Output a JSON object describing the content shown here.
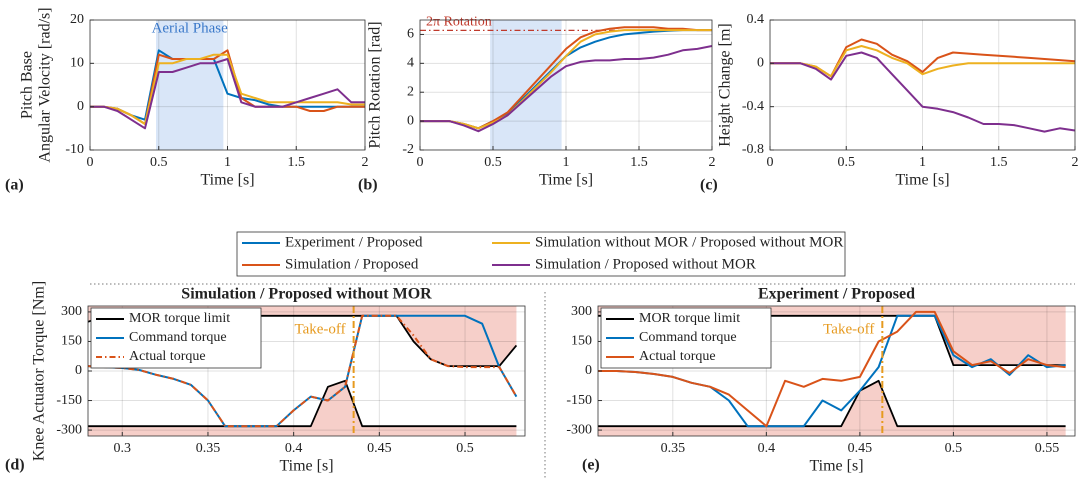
{
  "chart_data": [
    {
      "type": "line",
      "panel_label": "(a)",
      "xlabel": "Time [s]",
      "ylabel": [
        "Pitch Base",
        "Angular Velocity [rad/s]"
      ],
      "annotation": "Aerial Phase",
      "shade": [
        0.48,
        0.97
      ],
      "grid": true,
      "x": [
        0,
        0.1,
        0.2,
        0.3,
        0.4,
        0.5,
        0.6,
        0.7,
        0.8,
        0.9,
        1,
        1.1,
        1.2,
        1.3,
        1.4,
        1.5,
        1.6,
        1.7,
        1.8,
        1.9,
        2
      ],
      "xlim": [
        0,
        2
      ],
      "xticks": [
        0,
        0.5,
        1,
        1.5,
        2
      ],
      "ylim": [
        -10,
        20
      ],
      "yticks": [
        -10,
        0,
        10,
        20
      ],
      "series": [
        {
          "name": "Experiment / Proposed",
          "color": "#0072BD",
          "values": [
            0,
            0,
            -0.5,
            -2,
            -3,
            13,
            11,
            11,
            11,
            11,
            3,
            2,
            1.5,
            0.5,
            0,
            0,
            0,
            0,
            0,
            0,
            0
          ]
        },
        {
          "name": "Simulation / Proposed",
          "color": "#D95319",
          "values": [
            0,
            0,
            -0.5,
            -2,
            -4,
            12,
            11,
            11,
            11,
            11,
            13,
            2,
            0,
            0,
            0,
            0,
            -1,
            -1,
            0,
            0,
            0
          ]
        },
        {
          "name": "Simulation without MOR / Proposed without MOR",
          "color": "#EDB120",
          "values": [
            0,
            0,
            -0.5,
            -2,
            -4,
            10,
            10,
            11,
            11,
            12,
            12,
            3,
            2,
            1,
            1,
            1,
            1,
            1,
            1,
            0.5,
            0.5
          ]
        },
        {
          "name": "Simulation / Proposed without MOR",
          "color": "#7E2F8E",
          "values": [
            0,
            0,
            -1,
            -3,
            -5,
            8,
            8,
            9,
            10,
            10,
            11,
            1,
            0,
            0,
            0,
            1,
            2,
            3,
            4,
            1,
            1
          ]
        }
      ]
    },
    {
      "type": "line",
      "panel_label": "(b)",
      "xlabel": "Time [s]",
      "ylabel": [
        "Pitch Rotation [rad]"
      ],
      "annotation": "2π Rotation",
      "reference": 6.28,
      "shade": [
        0.48,
        0.97
      ],
      "grid": true,
      "x": [
        0,
        0.1,
        0.2,
        0.3,
        0.4,
        0.5,
        0.6,
        0.7,
        0.8,
        0.9,
        1,
        1.1,
        1.2,
        1.3,
        1.4,
        1.5,
        1.6,
        1.7,
        1.8,
        1.9,
        2
      ],
      "xlim": [
        0,
        2
      ],
      "xticks": [
        0,
        0.5,
        1,
        1.5,
        2
      ],
      "ylim": [
        -2,
        7
      ],
      "yticks": [
        -2,
        0,
        2,
        4,
        6
      ],
      "series": [
        {
          "color": "#0072BD",
          "values": [
            0,
            0,
            0,
            -0.2,
            -0.5,
            0,
            0.5,
            1.5,
            2.5,
            3.5,
            4.5,
            5.1,
            5.5,
            5.8,
            6,
            6.1,
            6.2,
            6.25,
            6.3,
            6.3,
            6.3
          ]
        },
        {
          "color": "#D95319",
          "values": [
            0,
            0,
            0,
            -0.2,
            -0.5,
            0,
            0.6,
            1.7,
            2.8,
            3.9,
            5,
            5.8,
            6.2,
            6.4,
            6.5,
            6.5,
            6.5,
            6.4,
            6.4,
            6.3,
            6.3
          ]
        },
        {
          "color": "#EDB120",
          "values": [
            0,
            0,
            0,
            -0.2,
            -0.5,
            -0.1,
            0.4,
            1.4,
            2.4,
            3.4,
            4.5,
            5.5,
            6,
            6.2,
            6.3,
            6.3,
            6.3,
            6.3,
            6.3,
            6.3,
            6.3
          ]
        },
        {
          "color": "#7E2F8E",
          "values": [
            0,
            0,
            0,
            -0.3,
            -0.7,
            -0.2,
            0.4,
            1.3,
            2.2,
            3.1,
            3.8,
            4.1,
            4.2,
            4.2,
            4.3,
            4.3,
            4.4,
            4.6,
            4.9,
            5.0,
            5.2
          ]
        }
      ]
    },
    {
      "type": "line",
      "panel_label": "(c)",
      "xlabel": "Time [s]",
      "ylabel": [
        "Height Change [m]"
      ],
      "grid": true,
      "x": [
        0,
        0.1,
        0.2,
        0.3,
        0.4,
        0.5,
        0.6,
        0.7,
        0.8,
        0.9,
        1,
        1.1,
        1.2,
        1.3,
        1.4,
        1.5,
        1.6,
        1.7,
        1.8,
        1.9,
        2
      ],
      "xlim": [
        0,
        2
      ],
      "xticks": [
        0,
        0.5,
        1,
        1.5,
        2
      ],
      "ylim": [
        -0.8,
        0.4
      ],
      "yticks": [
        -0.8,
        -0.4,
        0,
        0.4
      ],
      "series": [
        {
          "color": "#D95319",
          "values": [
            0,
            0,
            0,
            -0.03,
            -0.12,
            0.15,
            0.22,
            0.18,
            0.08,
            0.02,
            -0.08,
            0.05,
            0.1,
            0.09,
            0.08,
            0.07,
            0.06,
            0.05,
            0.04,
            0.03,
            0.02
          ]
        },
        {
          "color": "#EDB120",
          "values": [
            0,
            0,
            0,
            -0.03,
            -0.12,
            0.12,
            0.16,
            0.12,
            0.05,
            0,
            -0.1,
            -0.05,
            -0.02,
            0,
            0,
            0,
            0,
            0,
            0,
            0,
            0
          ]
        },
        {
          "color": "#7E2F8E",
          "values": [
            0,
            0,
            0,
            -0.05,
            -0.15,
            0.07,
            0.1,
            0.05,
            -0.1,
            -0.25,
            -0.4,
            -0.42,
            -0.45,
            -0.5,
            -0.56,
            -0.56,
            -0.57,
            -0.6,
            -0.63,
            -0.6,
            -0.62
          ]
        }
      ]
    },
    {
      "type": "line",
      "panel_label": "(d)",
      "title": "Simulation / Proposed without MOR",
      "xlabel": "Time [s]",
      "ylabel": [
        "Knee Actuator Torque [Nm]"
      ],
      "annotation": "Take-off",
      "takeoff": 0.435,
      "grid": true,
      "x": [
        0.28,
        0.29,
        0.3,
        0.31,
        0.32,
        0.33,
        0.34,
        0.35,
        0.36,
        0.37,
        0.38,
        0.39,
        0.4,
        0.41,
        0.42,
        0.43,
        0.44,
        0.45,
        0.46,
        0.47,
        0.48,
        0.49,
        0.5,
        0.51,
        0.52,
        0.53
      ],
      "xlim": [
        0.28,
        0.535
      ],
      "xticks": [
        0.3,
        0.35,
        0.4,
        0.45,
        0.5
      ],
      "ylim": [
        -330,
        330
      ],
      "yticks": [
        -300,
        -150,
        0,
        150,
        300
      ],
      "series": [
        {
          "name": "MOR torque limit",
          "color": "#000000",
          "limit": true,
          "values": [
            -280,
            -280,
            -280,
            -280,
            -280,
            -280,
            -280,
            -280,
            -280,
            -280,
            -280,
            -280,
            -280,
            -280,
            -80,
            -50,
            -280,
            -280,
            -280,
            -280,
            -280,
            -280,
            -280,
            -280,
            -280,
            -280
          ],
          "upper": [
            250,
            280,
            280,
            280,
            280,
            280,
            280,
            280,
            280,
            280,
            280,
            280,
            280,
            280,
            280,
            280,
            280,
            280,
            280,
            150,
            60,
            25,
            25,
            25,
            25,
            130
          ]
        },
        {
          "name": "Command torque",
          "color": "#0072BD",
          "values": [
            25,
            20,
            15,
            5,
            -20,
            -40,
            -70,
            -150,
            -280,
            -280,
            -280,
            -280,
            -200,
            -130,
            -150,
            -80,
            280,
            280,
            280,
            280,
            280,
            280,
            280,
            240,
            20,
            -130
          ]
        },
        {
          "name": "Actual torque",
          "color": "#D95319",
          "style": "dash-dot",
          "values": [
            25,
            20,
            15,
            5,
            -20,
            -40,
            -70,
            -150,
            -280,
            -280,
            -280,
            -280,
            -200,
            -130,
            -150,
            -80,
            280,
            280,
            280,
            180,
            60,
            25,
            20,
            20,
            20,
            -130
          ]
        }
      ]
    },
    {
      "type": "line",
      "panel_label": "(e)",
      "title": "Experiment / Proposed",
      "xlabel": "Time [s]",
      "annotation": "Take-off",
      "takeoff": 0.462,
      "grid": true,
      "x": [
        0.31,
        0.32,
        0.33,
        0.34,
        0.35,
        0.36,
        0.37,
        0.38,
        0.39,
        0.4,
        0.41,
        0.42,
        0.43,
        0.44,
        0.45,
        0.46,
        0.47,
        0.48,
        0.49,
        0.5,
        0.51,
        0.52,
        0.53,
        0.54,
        0.55,
        0.56
      ],
      "xlim": [
        0.31,
        0.565
      ],
      "xticks": [
        0.35,
        0.4,
        0.45,
        0.5,
        0.55
      ],
      "ylim": [
        -330,
        330
      ],
      "yticks": [
        -300,
        -150,
        0,
        150,
        300
      ],
      "series": [
        {
          "name": "MOR torque limit",
          "color": "#000000",
          "limit": true,
          "values": [
            -280,
            -280,
            -280,
            -280,
            -280,
            -280,
            -280,
            -280,
            -280,
            -280,
            -280,
            -280,
            -280,
            -280,
            -100,
            -50,
            -280,
            -280,
            -280,
            -280,
            -280,
            -280,
            -280,
            -280,
            -280,
            -280
          ],
          "upper": [
            280,
            280,
            280,
            280,
            280,
            280,
            280,
            280,
            280,
            280,
            280,
            280,
            280,
            280,
            280,
            280,
            280,
            280,
            280,
            30,
            30,
            30,
            30,
            30,
            30,
            30
          ]
        },
        {
          "name": "Command torque",
          "color": "#0072BD",
          "values": [
            0,
            0,
            -5,
            -15,
            -30,
            -60,
            -80,
            -150,
            -280,
            -280,
            -280,
            -280,
            -150,
            -200,
            -100,
            20,
            280,
            280,
            280,
            80,
            20,
            60,
            -20,
            80,
            20,
            30
          ]
        },
        {
          "name": "Actual torque",
          "color": "#D95319",
          "values": [
            0,
            0,
            -5,
            -15,
            -30,
            -60,
            -80,
            -120,
            -200,
            -280,
            -50,
            -80,
            -40,
            -50,
            -30,
            150,
            200,
            300,
            300,
            100,
            30,
            50,
            -10,
            60,
            30,
            20
          ]
        }
      ]
    }
  ]
}
